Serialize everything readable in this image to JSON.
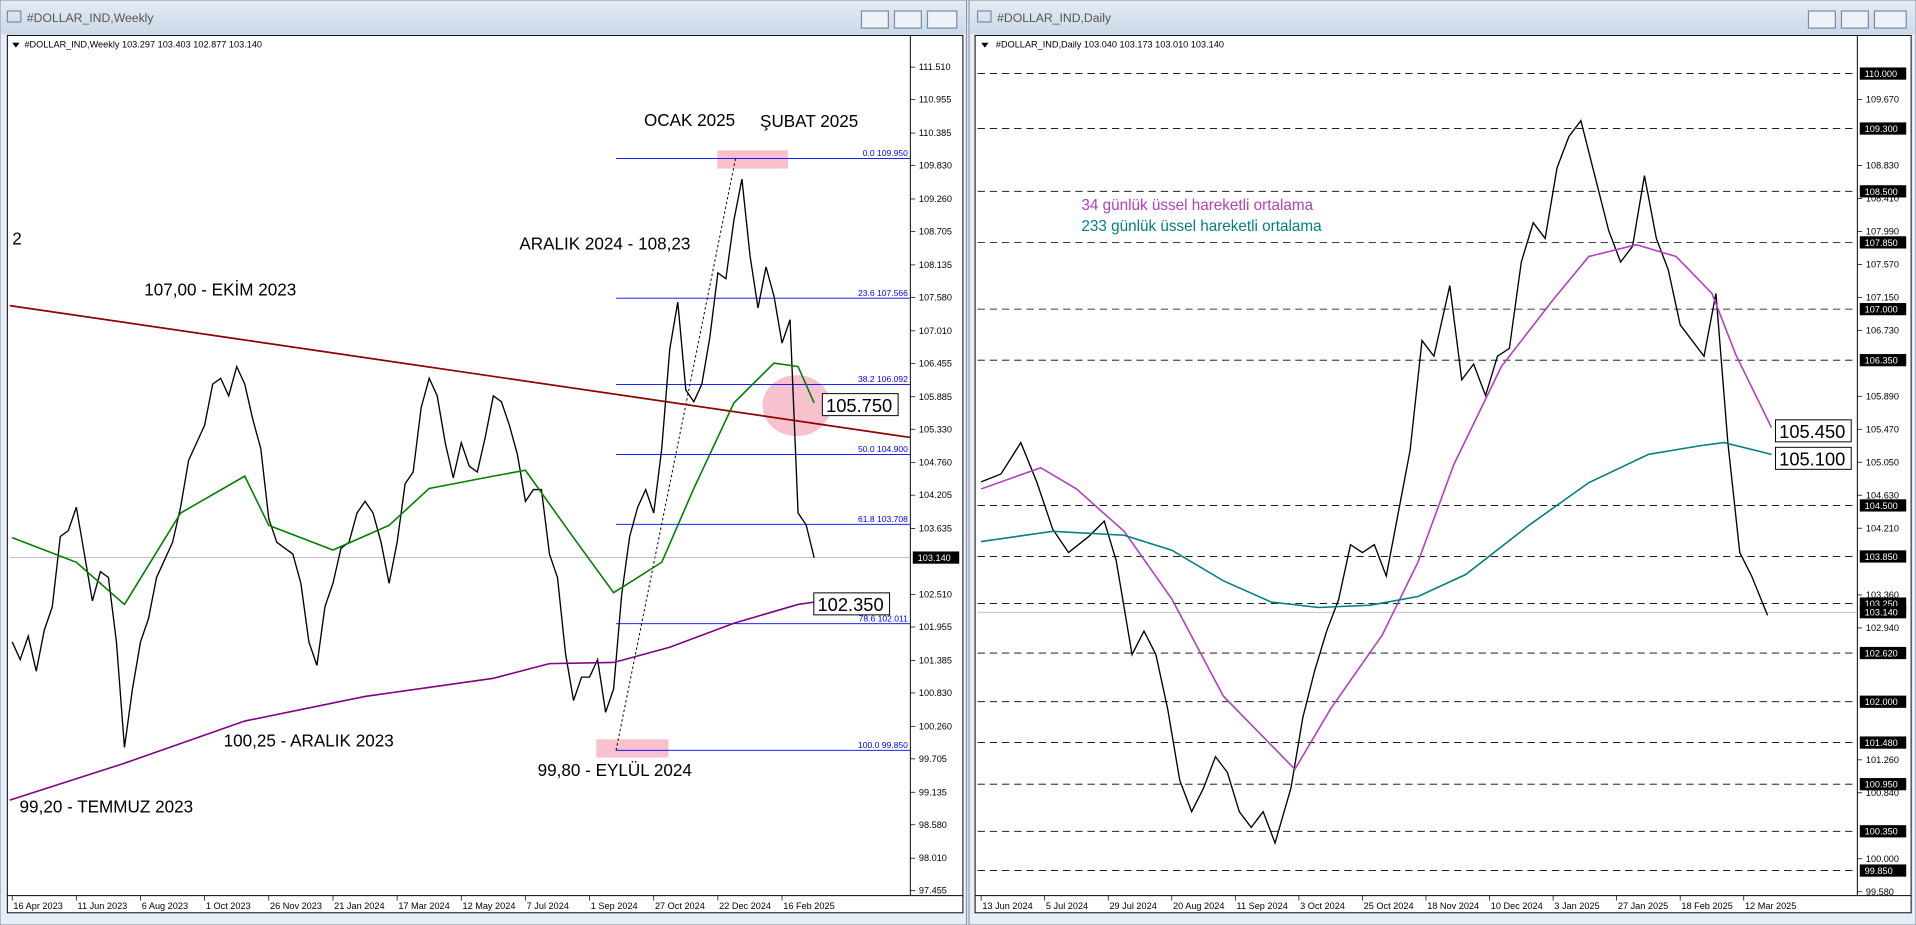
{
  "chart_data": [
    {
      "type": "line",
      "window_title": "#DOLLAR_IND,Weekly",
      "header": "#DOLLAR_IND,Weekly  103.297 103.403 102.877 103.140",
      "xlim": [
        -0.3,
        112.0
      ],
      "ylim": [
        97.37,
        112.03
      ],
      "xticks": [
        {
          "value": 0,
          "label": "16 Apr 2023"
        },
        {
          "value": 8,
          "label": "11 Jun 2023"
        },
        {
          "value": 16,
          "label": "6 Aug 2023"
        },
        {
          "value": 24,
          "label": "1 Oct 2023"
        },
        {
          "value": 32,
          "label": "26 Nov 2023"
        },
        {
          "value": 40,
          "label": "21 Jan 2024"
        },
        {
          "value": 48,
          "label": "17 Mar 2024"
        },
        {
          "value": 56,
          "label": "12 May 2024"
        },
        {
          "value": 64,
          "label": "7 Jul 2024"
        },
        {
          "value": 72,
          "label": "1 Sep 2024"
        },
        {
          "value": 80,
          "label": "27 Oct 2024"
        },
        {
          "value": 88,
          "label": "22 Dec 2024"
        },
        {
          "value": 96,
          "label": "16 Feb 2025"
        }
      ],
      "yticks": [
        {
          "value": 111.51,
          "label": "111.510"
        },
        {
          "value": 110.955,
          "label": "110.955"
        },
        {
          "value": 110.385,
          "label": "110.385"
        },
        {
          "value": 109.83,
          "label": "109.830"
        },
        {
          "value": 109.26,
          "label": "109.260"
        },
        {
          "value": 108.705,
          "label": "108.705"
        },
        {
          "value": 108.135,
          "label": "108.135"
        },
        {
          "value": 107.58,
          "label": "107.580"
        },
        {
          "value": 107.01,
          "label": "107.010"
        },
        {
          "value": 106.455,
          "label": "106.455"
        },
        {
          "value": 105.885,
          "label": "105.885"
        },
        {
          "value": 105.33,
          "label": "105.330"
        },
        {
          "value": 104.76,
          "label": "104.760"
        },
        {
          "value": 104.205,
          "label": "104.205"
        },
        {
          "value": 103.635,
          "label": "103.635"
        },
        {
          "value": 102.51,
          "label": "102.510"
        },
        {
          "value": 101.955,
          "label": "101.955"
        },
        {
          "value": 101.385,
          "label": "101.385"
        },
        {
          "value": 100.83,
          "label": "100.830"
        },
        {
          "value": 100.26,
          "label": "100.260"
        },
        {
          "value": 99.705,
          "label": "99.705"
        },
        {
          "value": 99.135,
          "label": "99.135"
        },
        {
          "value": 98.58,
          "label": "98.580"
        },
        {
          "value": 98.01,
          "label": "98.010"
        },
        {
          "value": 97.455,
          "label": "97.455"
        }
      ],
      "current": {
        "value": 103.14,
        "label": "103.140"
      },
      "series": [
        {
          "color": "#000000",
          "x": [
            0,
            1,
            2,
            3,
            4,
            5,
            6,
            7,
            8,
            9,
            10,
            11,
            12,
            13,
            14,
            15,
            16,
            17,
            18,
            19,
            20,
            21,
            22,
            23,
            24,
            25,
            26,
            27,
            28,
            29,
            30,
            31,
            32,
            33,
            34,
            35,
            36,
            37,
            38,
            39,
            40,
            41,
            42,
            43,
            44,
            45,
            46,
            47,
            48,
            49,
            50,
            51,
            52,
            53,
            54,
            55,
            56,
            57,
            58,
            59,
            60,
            61,
            62,
            63,
            64,
            65,
            66,
            67,
            68,
            69,
            70,
            71,
            72,
            73,
            74,
            75,
            76,
            77,
            78,
            79,
            80,
            81,
            82,
            83,
            84,
            85,
            86,
            87,
            88,
            89,
            90,
            91,
            92,
            93,
            94,
            95,
            96,
            97,
            98,
            99,
            100
          ],
          "values": [
            101.7,
            101.4,
            101.8,
            101.2,
            101.9,
            102.3,
            103.5,
            103.6,
            104.0,
            103.2,
            102.4,
            102.9,
            102.8,
            101.7,
            99.9,
            100.9,
            101.7,
            102.1,
            102.8,
            103.1,
            103.4,
            104.0,
            104.8,
            105.1,
            105.4,
            106.1,
            106.2,
            105.9,
            106.4,
            106.1,
            105.5,
            105.0,
            103.8,
            103.4,
            103.3,
            103.2,
            102.7,
            101.7,
            101.3,
            102.3,
            102.7,
            103.3,
            103.4,
            103.9,
            104.1,
            103.9,
            103.4,
            102.7,
            103.4,
            104.4,
            104.6,
            105.7,
            106.2,
            105.9,
            105.1,
            104.5,
            105.1,
            104.7,
            104.6,
            105.2,
            105.9,
            105.8,
            105.4,
            104.9,
            104.1,
            104.3,
            104.3,
            103.2,
            102.8,
            101.5,
            100.7,
            101.1,
            101.1,
            101.4,
            100.5,
            100.9,
            102.5,
            103.5,
            104.0,
            104.3,
            103.9,
            105.0,
            106.7,
            107.5,
            106.0,
            105.8,
            106.1,
            106.9,
            108.0,
            107.9,
            108.9,
            109.6,
            108.3,
            107.4,
            108.1,
            107.6,
            106.8,
            107.2,
            103.9,
            103.7,
            103.14
          ]
        },
        {
          "color": "#008000",
          "x": [
            0,
            8,
            14,
            21,
            29,
            32,
            40,
            47,
            52,
            60,
            64,
            70,
            75,
            81,
            85,
            90,
            95,
            98,
            100
          ],
          "values": [
            103.48,
            103.06,
            102.34,
            103.9,
            104.53,
            103.69,
            103.27,
            103.69,
            104.32,
            104.53,
            104.63,
            103.48,
            102.54,
            103.06,
            104.32,
            105.78,
            106.46,
            106.4,
            105.78
          ]
        },
        {
          "color": "#800080",
          "x": [
            -0.3,
            14,
            29,
            44,
            60,
            67,
            75,
            82,
            90,
            98,
            100
          ],
          "values": [
            99.0,
            99.63,
            100.35,
            100.77,
            101.08,
            101.33,
            101.35,
            101.61,
            102.02,
            102.34,
            102.38
          ]
        }
      ],
      "trendline": {
        "color": "#8b0000",
        "x": [
          -0.3,
          112.0
        ],
        "values": [
          107.44,
          105.19
        ]
      },
      "fib_line": {
        "x": [
          75.3,
          90.2
        ],
        "values": [
          99.85,
          109.95
        ]
      },
      "fib_levels": [
        {
          "value": 109.95,
          "label": "0.0 109.950"
        },
        {
          "value": 107.566,
          "label": "23.6 107.566"
        },
        {
          "value": 106.092,
          "label": "38.2 106.092"
        },
        {
          "value": 104.9,
          "label": "50.0 104.900"
        },
        {
          "value": 103.708,
          "label": "61.8 103.708"
        },
        {
          "value": 102.011,
          "label": "78.6 102.011"
        },
        {
          "value": 99.85,
          "label": "100.0 99.850"
        }
      ],
      "callouts": [
        {
          "value": 105.75,
          "label": "105.750"
        },
        {
          "value": 102.35,
          "label": "102.350"
        }
      ],
      "annotations": [
        "OCAK 2025",
        "ŞUBAT 2025",
        "ARALIK 2024 - 108,23",
        "107,00 - EKİM 2023",
        "100,25 - ARALIK 2023",
        "99,20 - TEMMUZ 2023",
        "99,80 - EYLÜL 2024",
        "2"
      ]
    },
    {
      "type": "line",
      "window_title": "#DOLLAR_IND,Daily",
      "header": "#DOLLAR_IND,Daily  103.040 103.173 103.010 103.140",
      "xlim": [
        -0.9,
        220.6
      ],
      "ylim": [
        99.53,
        110.47
      ],
      "xticks": [
        {
          "value": 0,
          "label": "13 Jun 2024"
        },
        {
          "value": 16,
          "label": "5 Jul 2024"
        },
        {
          "value": 32,
          "label": "29 Jul 2024"
        },
        {
          "value": 48,
          "label": "20 Aug 2024"
        },
        {
          "value": 64,
          "label": "11 Sep 2024"
        },
        {
          "value": 80,
          "label": "3 Oct 2024"
        },
        {
          "value": 96,
          "label": "25 Oct 2024"
        },
        {
          "value": 112,
          "label": "18 Nov 2024"
        },
        {
          "value": 128,
          "label": "10 Dec 2024"
        },
        {
          "value": 144,
          "label": "3 Jan 2025"
        },
        {
          "value": 160,
          "label": "27 Jan 2025"
        },
        {
          "value": 176,
          "label": "18 Feb 2025"
        },
        {
          "value": 192,
          "label": "12 Mar 2025"
        }
      ],
      "yticks": [
        {
          "value": 109.67,
          "label": "109.670"
        },
        {
          "value": 108.83,
          "label": "108.830"
        },
        {
          "value": 108.41,
          "label": "108.410"
        },
        {
          "value": 107.99,
          "label": "107.990"
        },
        {
          "value": 107.57,
          "label": "107.570"
        },
        {
          "value": 107.15,
          "label": "107.150"
        },
        {
          "value": 106.73,
          "label": "106.730"
        },
        {
          "value": 105.89,
          "label": "105.890"
        },
        {
          "value": 105.47,
          "label": "105.470"
        },
        {
          "value": 105.05,
          "label": "105.050"
        },
        {
          "value": 104.63,
          "label": "104.630"
        },
        {
          "value": 104.21,
          "label": "104.210"
        },
        {
          "value": 103.36,
          "label": "103.360"
        },
        {
          "value": 102.94,
          "label": "102.940"
        },
        {
          "value": 101.26,
          "label": "101.260"
        },
        {
          "value": 100.84,
          "label": "100.840"
        },
        {
          "value": 100.0,
          "label": "100.000"
        },
        {
          "value": 99.58,
          "label": "99.580"
        }
      ],
      "current": {
        "value": 103.14,
        "label": "103.140"
      },
      "levels": [
        {
          "value": 110.0,
          "label": "110.000"
        },
        {
          "value": 109.3,
          "label": "109.300"
        },
        {
          "value": 108.5,
          "label": "108.500"
        },
        {
          "value": 107.85,
          "label": "107.850"
        },
        {
          "value": 107.0,
          "label": "107.000"
        },
        {
          "value": 106.35,
          "label": "106.350"
        },
        {
          "value": 104.5,
          "label": "104.500"
        },
        {
          "value": 103.85,
          "label": "103.850"
        },
        {
          "value": 103.25,
          "label": "103.250"
        },
        {
          "value": 102.62,
          "label": "102.620"
        },
        {
          "value": 102.0,
          "label": "102.000"
        },
        {
          "value": 101.48,
          "label": "101.480"
        },
        {
          "value": 100.95,
          "label": "100.950"
        },
        {
          "value": 100.35,
          "label": "100.350"
        },
        {
          "value": 99.85,
          "label": "99.850"
        }
      ],
      "series": [
        {
          "color": "#000000",
          "x": [
            0,
            5,
            10,
            14,
            18,
            22,
            27,
            31,
            34,
            38,
            41,
            44,
            47,
            50,
            53,
            56,
            59,
            62,
            65,
            68,
            71,
            74,
            78,
            81,
            84,
            87,
            90,
            93,
            96,
            99,
            102,
            105,
            108,
            111,
            114,
            118,
            121,
            124,
            127,
            130,
            133,
            136,
            139,
            142,
            145,
            148,
            151,
            154,
            158,
            161,
            164,
            167,
            170,
            173,
            176,
            179,
            182,
            185,
            188,
            191,
            194,
            198
          ],
          "values": [
            104.8,
            104.9,
            105.3,
            104.8,
            104.2,
            103.9,
            104.1,
            104.3,
            103.8,
            102.6,
            102.9,
            102.6,
            101.9,
            101.0,
            100.6,
            100.9,
            101.3,
            101.1,
            100.6,
            100.4,
            100.6,
            100.2,
            100.9,
            101.8,
            102.4,
            102.9,
            103.3,
            104.0,
            103.9,
            104.0,
            103.6,
            104.4,
            105.2,
            106.6,
            106.4,
            107.3,
            106.1,
            106.3,
            105.9,
            106.4,
            106.5,
            107.6,
            108.1,
            107.9,
            108.8,
            109.2,
            109.4,
            108.8,
            108.0,
            107.6,
            107.8,
            108.7,
            107.9,
            107.5,
            106.8,
            106.6,
            106.4,
            107.2,
            105.3,
            103.9,
            103.6,
            103.1
          ]
        },
        {
          "name": "34 günlük üssel hareketli ortalama",
          "color": "#b040c0",
          "x": [
            0,
            15,
            24,
            36,
            48,
            61,
            73,
            79,
            88,
            101,
            110,
            119,
            131,
            144,
            153,
            165,
            175,
            184,
            190,
            199
          ],
          "values": [
            104.71,
            104.98,
            104.71,
            104.17,
            103.31,
            102.07,
            101.45,
            101.14,
            101.91,
            102.85,
            103.78,
            105.02,
            106.27,
            107.12,
            107.67,
            107.82,
            107.67,
            107.2,
            106.42,
            105.49
          ]
        },
        {
          "name": "233 günlük üssel hareketli ortalama",
          "color": "#008080",
          "x": [
            0,
            18,
            36,
            48,
            61,
            73,
            85,
            98,
            110,
            122,
            138,
            153,
            168,
            181,
            187,
            199
          ],
          "values": [
            104.04,
            104.17,
            104.12,
            103.93,
            103.54,
            103.27,
            103.2,
            103.23,
            103.34,
            103.62,
            104.25,
            104.79,
            105.15,
            105.26,
            105.3,
            105.15
          ]
        }
      ],
      "callouts": [
        {
          "value": 105.45,
          "label": "105.450"
        },
        {
          "value": 105.1,
          "label": "105.100"
        }
      ]
    }
  ]
}
